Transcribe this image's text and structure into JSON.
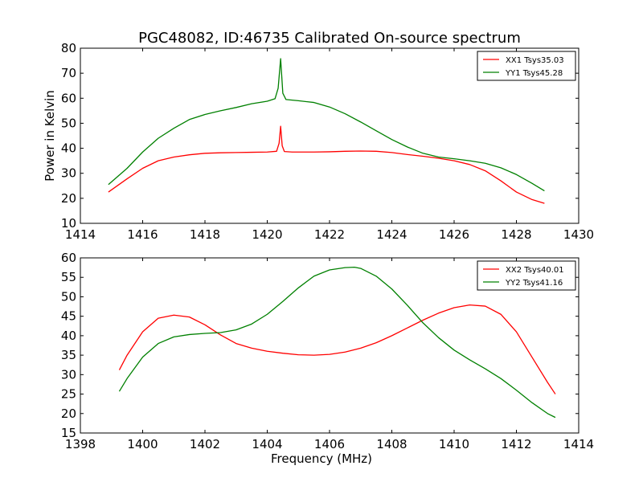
{
  "title": "PGC48082, ID:46735 Calibrated On-source spectrum",
  "colors": {
    "xx": "#ff0000",
    "yy": "#008000"
  },
  "chart_data": [
    {
      "type": "line",
      "xlabel": "",
      "ylabel": "Power in Kelvin",
      "xlim": [
        1414,
        1430
      ],
      "ylim": [
        10,
        80
      ],
      "xticks": [
        1414,
        1416,
        1418,
        1420,
        1422,
        1424,
        1426,
        1428,
        1430
      ],
      "yticks": [
        10,
        20,
        30,
        40,
        50,
        60,
        70,
        80
      ],
      "legend_position": "top-right",
      "series": [
        {
          "name": "XX1 Tsys35.03",
          "color": "#ff0000",
          "x": [
            1414.9,
            1415.5,
            1416.0,
            1416.5,
            1417.0,
            1417.5,
            1418.0,
            1418.5,
            1419.0,
            1419.5,
            1420.0,
            1420.3,
            1420.38,
            1420.43,
            1420.48,
            1420.55,
            1420.8,
            1421.5,
            1422.0,
            1422.5,
            1423.0,
            1423.5,
            1424.0,
            1424.5,
            1425.0,
            1425.5,
            1426.0,
            1426.5,
            1427.0,
            1427.5,
            1428.0,
            1428.5,
            1428.9
          ],
          "y": [
            22.5,
            27.8,
            32.0,
            35.0,
            36.5,
            37.4,
            38.0,
            38.2,
            38.3,
            38.4,
            38.5,
            38.8,
            42.0,
            48.8,
            41.0,
            38.7,
            38.5,
            38.5,
            38.6,
            38.8,
            38.9,
            38.8,
            38.3,
            37.5,
            36.8,
            36.0,
            35.0,
            33.5,
            31.0,
            27.0,
            22.5,
            19.5,
            18.0
          ]
        },
        {
          "name": "YY1 Tsys45.28",
          "color": "#008000",
          "x": [
            1414.9,
            1415.5,
            1416.0,
            1416.5,
            1417.0,
            1417.5,
            1418.0,
            1418.5,
            1419.0,
            1419.5,
            1420.0,
            1420.25,
            1420.35,
            1420.43,
            1420.5,
            1420.6,
            1421.0,
            1421.5,
            1422.0,
            1422.5,
            1423.0,
            1423.5,
            1424.0,
            1424.5,
            1425.0,
            1425.5,
            1426.0,
            1426.5,
            1427.0,
            1427.5,
            1428.0,
            1428.5,
            1428.9
          ],
          "y": [
            25.5,
            32.0,
            38.5,
            44.0,
            48.0,
            51.5,
            53.5,
            55.0,
            56.3,
            57.8,
            58.8,
            59.8,
            64.0,
            75.8,
            62.0,
            59.5,
            59.0,
            58.3,
            56.5,
            53.8,
            50.5,
            47.0,
            43.5,
            40.5,
            38.0,
            36.5,
            35.8,
            35.0,
            34.0,
            32.2,
            29.5,
            26.0,
            23.0
          ]
        }
      ]
    },
    {
      "type": "line",
      "xlabel": "Frequency (MHz)",
      "ylabel": "",
      "xlim": [
        1398,
        1414
      ],
      "ylim": [
        15,
        60
      ],
      "xticks": [
        1398,
        1400,
        1402,
        1404,
        1406,
        1408,
        1410,
        1412,
        1414
      ],
      "yticks": [
        15,
        20,
        25,
        30,
        35,
        40,
        45,
        50,
        55,
        60
      ],
      "legend_position": "top-right",
      "series": [
        {
          "name": "XX2 Tsys40.01",
          "color": "#ff0000",
          "x": [
            1399.25,
            1399.5,
            1400.0,
            1400.5,
            1401.0,
            1401.5,
            1402.0,
            1402.5,
            1403.0,
            1403.5,
            1404.0,
            1404.5,
            1405.0,
            1405.5,
            1406.0,
            1406.5,
            1407.0,
            1407.5,
            1408.0,
            1408.5,
            1409.0,
            1409.5,
            1410.0,
            1410.5,
            1411.0,
            1411.5,
            1412.0,
            1412.5,
            1413.0,
            1413.25
          ],
          "y": [
            31.2,
            35.0,
            41.0,
            44.5,
            45.3,
            44.8,
            42.8,
            40.2,
            38.0,
            36.8,
            36.0,
            35.5,
            35.1,
            35.0,
            35.2,
            35.8,
            36.8,
            38.2,
            40.0,
            42.0,
            44.0,
            45.8,
            47.2,
            47.9,
            47.6,
            45.5,
            41.0,
            34.5,
            28.0,
            25.0
          ]
        },
        {
          "name": "YY2 Tsys41.16",
          "color": "#008000",
          "x": [
            1399.25,
            1399.5,
            1400.0,
            1400.5,
            1401.0,
            1401.5,
            1402.0,
            1402.5,
            1403.0,
            1403.5,
            1404.0,
            1404.5,
            1405.0,
            1405.5,
            1406.0,
            1406.5,
            1406.8,
            1407.0,
            1407.5,
            1408.0,
            1408.5,
            1409.0,
            1409.5,
            1410.0,
            1410.5,
            1411.0,
            1411.5,
            1412.0,
            1412.5,
            1413.0,
            1413.25
          ],
          "y": [
            25.7,
            29.0,
            34.5,
            38.0,
            39.7,
            40.3,
            40.6,
            40.8,
            41.5,
            43.0,
            45.5,
            48.8,
            52.3,
            55.3,
            56.9,
            57.5,
            57.6,
            57.3,
            55.3,
            52.0,
            47.8,
            43.3,
            39.5,
            36.3,
            33.8,
            31.5,
            29.0,
            26.0,
            22.8,
            20.0,
            19.0
          ]
        }
      ]
    }
  ]
}
